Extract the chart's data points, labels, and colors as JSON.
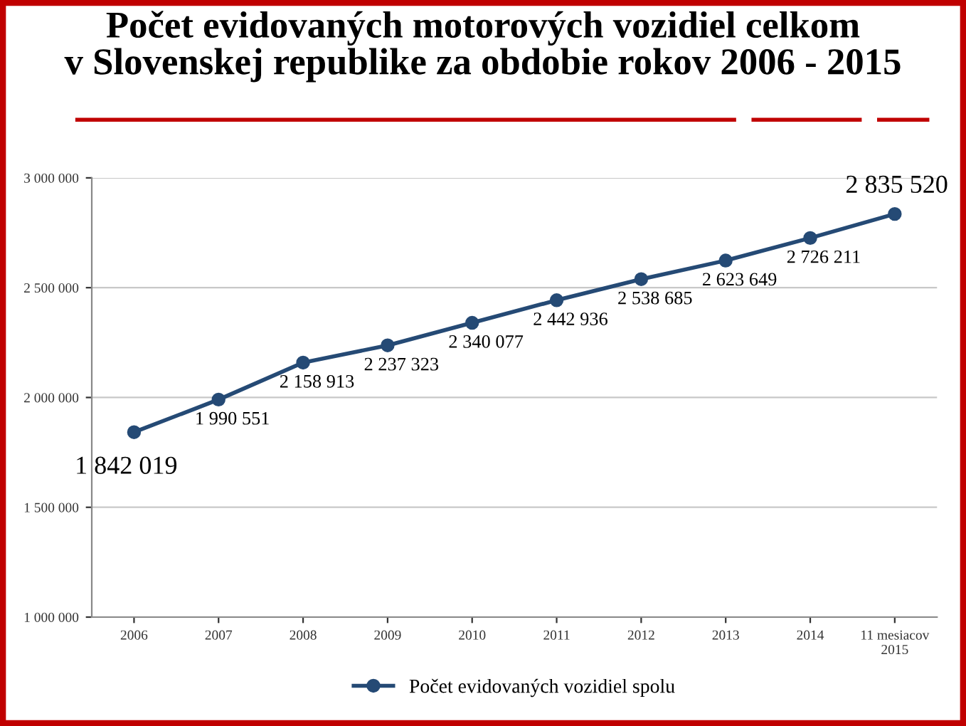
{
  "chart_data": {
    "type": "line",
    "title": "Počet evidovaných motorových vozidiel celkom\nv Slovenskej republike za obdobie rokov 2006 - 2015",
    "categories": [
      "2006",
      "2007",
      "2008",
      "2009",
      "2010",
      "2011",
      "2012",
      "2013",
      "2014",
      "11 mesiacov\n2015"
    ],
    "series": [
      {
        "name": "Počet evidovaných vozidiel spolu",
        "color": "#254a75",
        "values": [
          1842019,
          1990551,
          2158913,
          2237323,
          2340077,
          2442936,
          2538685,
          2623649,
          2726211,
          2835520
        ],
        "value_labels": [
          "1 842 019",
          "1 990 551",
          "2 158 913",
          "2 237 323",
          "2 340 077",
          "2 442 936",
          "2 538 685",
          "2 623 649",
          "2 726 211",
          "2 835 520"
        ]
      }
    ],
    "ylim": [
      1000000,
      3000000
    ],
    "yticks": [
      {
        "value": 1000000,
        "label": "1 000 000"
      },
      {
        "value": 1500000,
        "label": "1 500 000"
      },
      {
        "value": 2000000,
        "label": "2 000 000"
      },
      {
        "value": 2500000,
        "label": "2 500 000"
      },
      {
        "value": 3000000,
        "label": "3 000 000"
      }
    ],
    "grid": "y",
    "legend": "bottom",
    "marker": "circle",
    "line_style": "solid"
  }
}
